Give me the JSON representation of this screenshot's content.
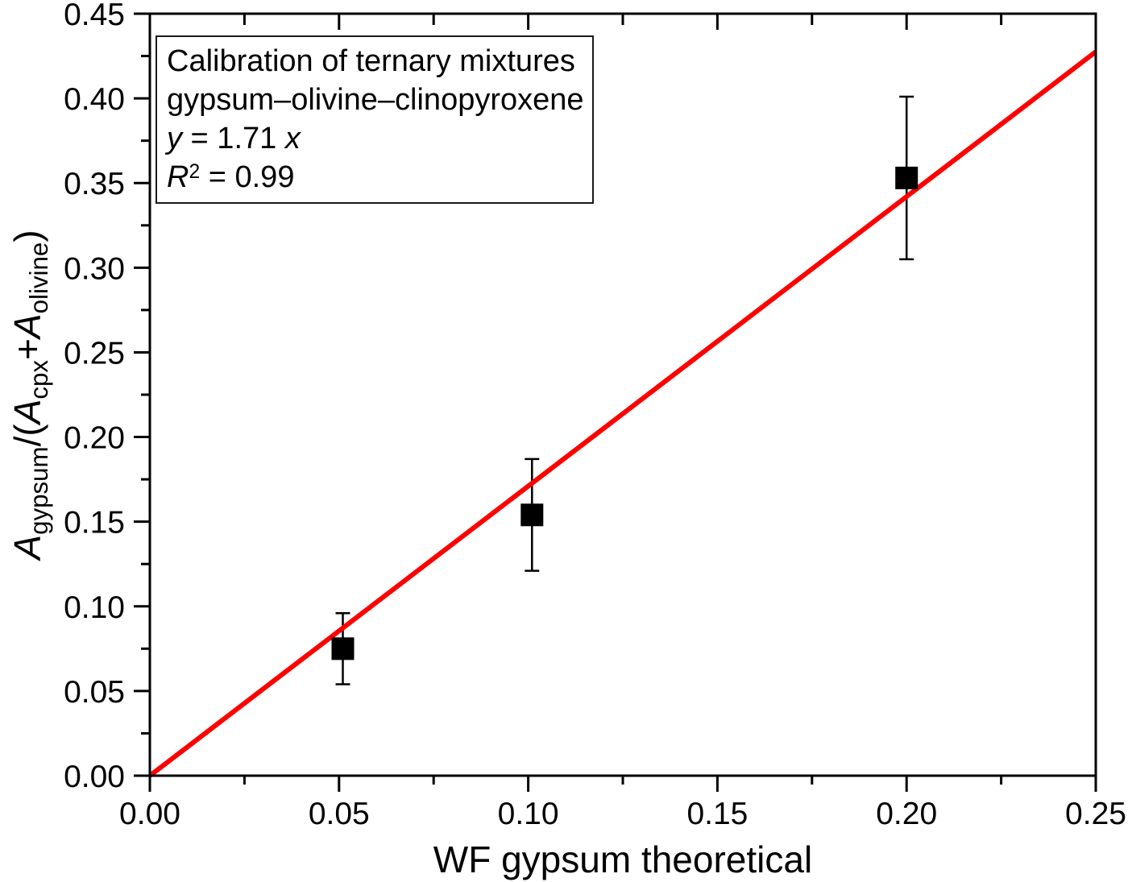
{
  "chart_data": {
    "type": "scatter",
    "title": "",
    "xlabel": "WF gypsum theoretical",
    "ylabel_segments": [
      {
        "t": "A",
        "s": "i"
      },
      {
        "t": "gypsum",
        "s": "sub"
      },
      {
        "t": "/(",
        "s": "n"
      },
      {
        "t": "A",
        "s": "i"
      },
      {
        "t": "cpx",
        "s": "sub"
      },
      {
        "t": "+",
        "s": "n"
      },
      {
        "t": "A",
        "s": "i"
      },
      {
        "t": "olivine",
        "s": "sub"
      },
      {
        "t": ")",
        "s": "n"
      }
    ],
    "xlim": [
      0,
      0.25
    ],
    "ylim": [
      0,
      0.45
    ],
    "x_major_step": 0.05,
    "x_minor_step": 0.025,
    "y_major_step": 0.05,
    "y_minor_step": 0.025,
    "x_tick_labels": [
      "0.00",
      "0.05",
      "0.10",
      "0.15",
      "0.20",
      "0.25"
    ],
    "y_tick_labels": [
      "0.00",
      "0.05",
      "0.10",
      "0.15",
      "0.20",
      "0.25",
      "0.30",
      "0.35",
      "0.40",
      "0.45"
    ],
    "grid": false,
    "legend": "none",
    "points": [
      {
        "x": 0.051,
        "y": 0.075,
        "yerr": 0.021
      },
      {
        "x": 0.101,
        "y": 0.154,
        "yerr": 0.033
      },
      {
        "x": 0.2,
        "y": 0.353,
        "yerr": 0.048
      }
    ],
    "fit_line": {
      "slope": 1.71,
      "intercept": 0,
      "x_start": 0,
      "x_end": 0.25
    },
    "annotation_lines": [
      [
        {
          "t": "Calibration of ternary mixtures",
          "s": "n"
        }
      ],
      [
        {
          "t": "gypsum–olivine–clinopyroxene",
          "s": "n"
        }
      ],
      [
        {
          "t": "y",
          "s": "i"
        },
        {
          "t": " = 1.71 ",
          "s": "n"
        },
        {
          "t": "x",
          "s": "i"
        }
      ],
      [
        {
          "t": "R",
          "s": "i"
        },
        {
          "t": "2",
          "s": "sup"
        },
        {
          "t": " = 0.99",
          "s": "n"
        }
      ]
    ],
    "colors": {
      "fit_line": "#ff0000",
      "marker": "#000000",
      "error_bar": "#000000",
      "axis": "#000000",
      "text": "#000000",
      "annotation_border": "#1a1a1a",
      "background": "#ffffff"
    }
  }
}
